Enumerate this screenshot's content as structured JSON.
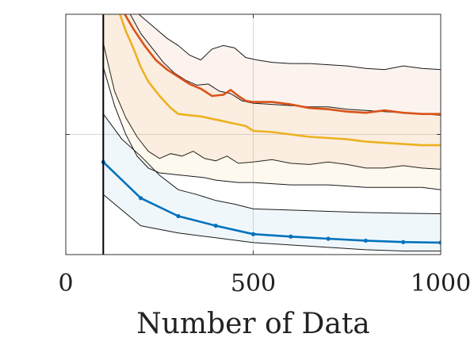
{
  "chart_data": {
    "type": "line",
    "title": "",
    "xlabel": "Number of Data",
    "ylabel": "",
    "xlim": [
      0,
      1000
    ],
    "ylim": [
      0,
      1
    ],
    "x_ticks": [
      0,
      500,
      1000
    ],
    "x_tick_labels": [
      "0",
      "500",
      "1000"
    ],
    "y_ticks": [
      0.5
    ],
    "y_tick_labels": [],
    "grid": true,
    "legend": "none",
    "vertical_line_x": 100,
    "series": [
      {
        "color": "#0072BD",
        "markers": true,
        "line": {
          "x": [
            100,
            200,
            300,
            400,
            500,
            600,
            700,
            800,
            900,
            1000
          ],
          "y": [
            0.385,
            0.235,
            0.16,
            0.12,
            0.085,
            0.075,
            0.066,
            0.058,
            0.052,
            0.05
          ]
        },
        "band_upper": {
          "x": [
            100,
            150,
            200,
            250,
            300,
            350,
            400,
            450,
            500,
            600,
            700,
            800,
            900,
            1000
          ],
          "y": [
            0.585,
            0.48,
            0.41,
            0.33,
            0.27,
            0.25,
            0.225,
            0.21,
            0.19,
            0.185,
            0.18,
            0.175,
            0.172,
            0.17
          ]
        },
        "band_lower": {
          "x": [
            100,
            200,
            300,
            400,
            500,
            600,
            700,
            800,
            900,
            1000
          ],
          "y": [
            0.25,
            0.12,
            0.09,
            0.07,
            0.05,
            0.04,
            0.03,
            0.02,
            0.015,
            0.015
          ]
        }
      },
      {
        "color": "#D95319",
        "markers": false,
        "line": {
          "x": [
            150,
            180,
            210,
            240,
            270,
            300,
            330,
            360,
            390,
            420,
            440,
            460,
            480,
            500,
            550,
            600,
            650,
            700,
            750,
            800,
            850,
            900,
            950,
            1000
          ],
          "y": [
            1.02,
            0.94,
            0.87,
            0.81,
            0.77,
            0.74,
            0.71,
            0.69,
            0.66,
            0.665,
            0.685,
            0.66,
            0.64,
            0.635,
            0.635,
            0.625,
            0.61,
            0.605,
            0.595,
            0.59,
            0.6,
            0.59,
            0.585,
            0.585
          ]
        },
        "band_upper": {
          "x": [
            180,
            210,
            240,
            270,
            300,
            330,
            360,
            390,
            420,
            450,
            480,
            510,
            550,
            600,
            650,
            700,
            750,
            800,
            850,
            900,
            950,
            1000
          ],
          "y": [
            1.02,
            0.98,
            0.94,
            0.9,
            0.87,
            0.83,
            0.81,
            0.855,
            0.87,
            0.86,
            0.82,
            0.81,
            0.8,
            0.795,
            0.795,
            0.79,
            0.785,
            0.775,
            0.77,
            0.785,
            0.775,
            0.77
          ]
        },
        "band_lower": {
          "x": [
            100,
            130,
            160,
            190,
            220,
            250,
            280,
            310,
            340,
            370,
            400,
            430,
            460,
            500,
            550,
            600,
            650,
            700,
            750,
            800,
            850,
            900,
            950,
            1000
          ],
          "y": [
            0.88,
            0.68,
            0.57,
            0.49,
            0.43,
            0.4,
            0.42,
            0.41,
            0.43,
            0.4,
            0.39,
            0.41,
            0.38,
            0.385,
            0.395,
            0.38,
            0.375,
            0.385,
            0.375,
            0.36,
            0.36,
            0.37,
            0.36,
            0.355
          ]
        }
      },
      {
        "color": "#EDB120",
        "markers": false,
        "line": {
          "x": [
            140,
            160,
            180,
            200,
            220,
            250,
            280,
            300,
            330,
            360,
            390,
            420,
            450,
            480,
            500,
            550,
            600,
            650,
            700,
            750,
            800,
            850,
            900,
            950,
            1000
          ],
          "y": [
            1.02,
            0.93,
            0.86,
            0.78,
            0.72,
            0.66,
            0.61,
            0.585,
            0.58,
            0.575,
            0.565,
            0.555,
            0.545,
            0.535,
            0.515,
            0.51,
            0.5,
            0.49,
            0.485,
            0.48,
            0.47,
            0.465,
            0.46,
            0.455,
            0.455
          ]
        },
        "band_upper": {
          "x": [
            165,
            200,
            230,
            260,
            290,
            320,
            350,
            380,
            410,
            440,
            470,
            500,
            550,
            600,
            650,
            700,
            750,
            800,
            850,
            900,
            950,
            1000
          ],
          "y": [
            1.02,
            0.92,
            0.86,
            0.8,
            0.755,
            0.725,
            0.705,
            0.71,
            0.68,
            0.67,
            0.64,
            0.63,
            0.625,
            0.62,
            0.615,
            0.615,
            0.605,
            0.6,
            0.595,
            0.59,
            0.585,
            0.58
          ]
        },
        "band_lower": {
          "x": [
            100,
            130,
            160,
            190,
            220,
            250,
            280,
            310,
            340,
            370,
            400,
            430,
            460,
            500,
            550,
            600,
            650,
            700,
            750,
            800,
            850,
            900,
            950,
            1000
          ],
          "y": [
            0.78,
            0.62,
            0.5,
            0.41,
            0.36,
            0.34,
            0.335,
            0.33,
            0.325,
            0.32,
            0.31,
            0.305,
            0.3,
            0.3,
            0.295,
            0.29,
            0.29,
            0.29,
            0.285,
            0.28,
            0.28,
            0.28,
            0.28,
            0.27
          ]
        }
      }
    ]
  }
}
